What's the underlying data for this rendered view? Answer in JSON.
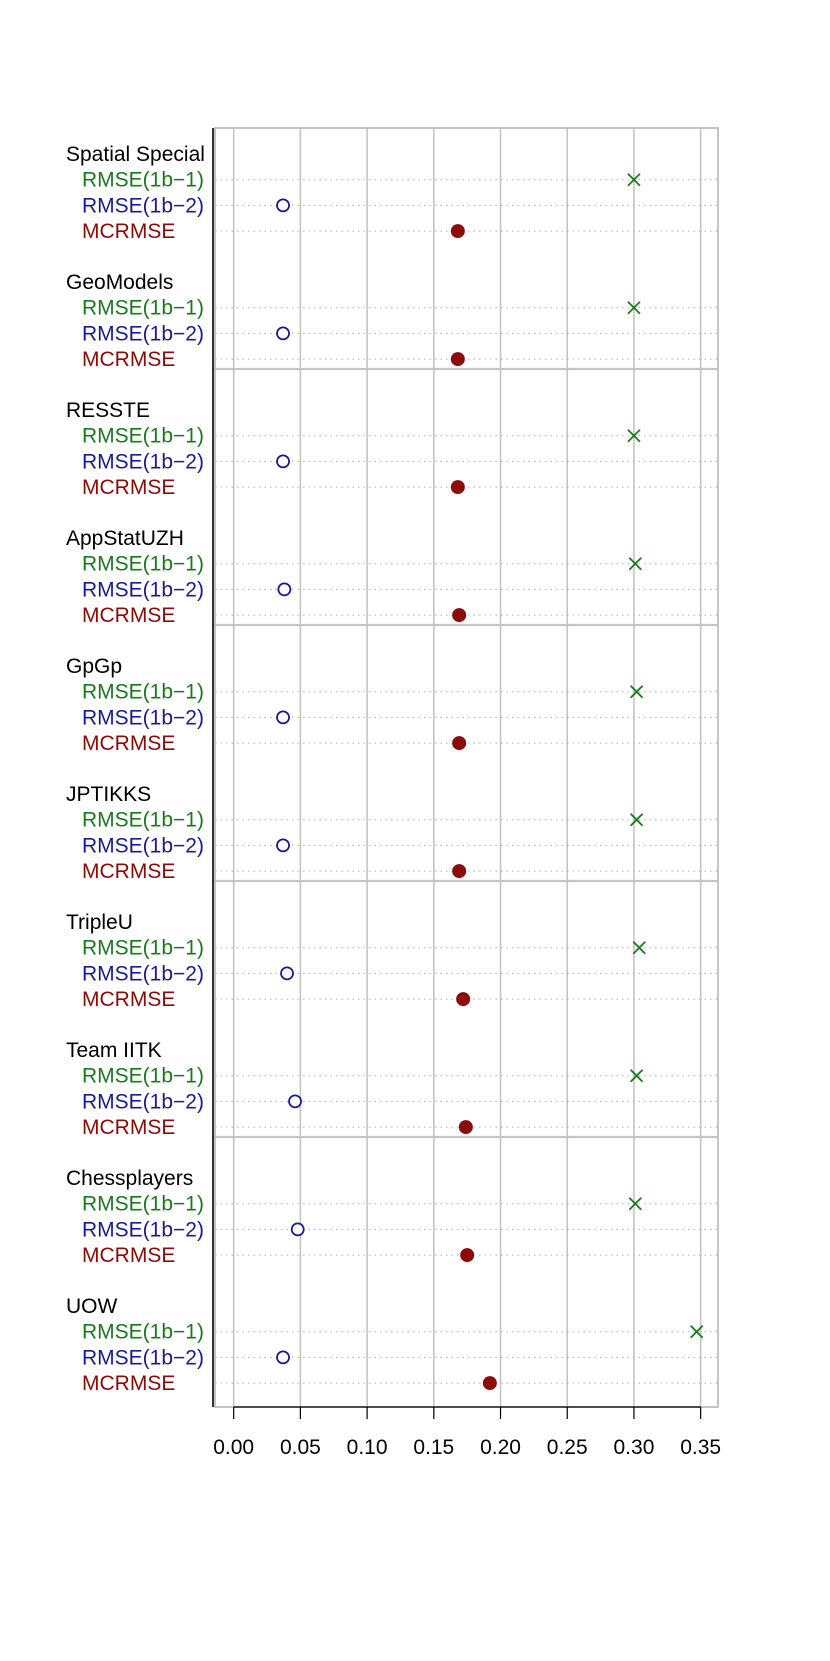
{
  "chart_data": {
    "type": "scatter",
    "orientation": "horizontal dot plot",
    "xlim": [
      -0.014,
      0.363
    ],
    "x_ticks": [
      "0.00",
      "0.05",
      "0.10",
      "0.15",
      "0.20",
      "0.25",
      "0.30",
      "0.35"
    ],
    "x_tick_values": [
      0,
      0.05,
      0.1,
      0.15,
      0.2,
      0.25,
      0.3,
      0.35
    ],
    "grid": true,
    "metric_labels": [
      "RMSE(1b−1)",
      "RMSE(1b−2)",
      "MCRMSE"
    ],
    "series_style": [
      {
        "metric": "RMSE(1b−1)",
        "marker": "x",
        "color": "#1a7a1a"
      },
      {
        "metric": "RMSE(1b−2)",
        "marker": "open-circle",
        "color": "#1a1a99"
      },
      {
        "metric": "MCRMSE",
        "marker": "filled-circle",
        "color": "#8b0a0a"
      }
    ],
    "teams": [
      {
        "name": "Spatial Special",
        "values": [
          0.3,
          0.037,
          0.168
        ]
      },
      {
        "name": "GeoModels",
        "values": [
          0.3,
          0.037,
          0.168
        ]
      },
      {
        "name": "RESSTE",
        "values": [
          0.3,
          0.037,
          0.168
        ]
      },
      {
        "name": "AppStatUZH",
        "values": [
          0.301,
          0.038,
          0.169
        ]
      },
      {
        "name": "GpGp",
        "values": [
          0.302,
          0.037,
          0.169
        ]
      },
      {
        "name": "JPTIKKS",
        "values": [
          0.302,
          0.037,
          0.169
        ]
      },
      {
        "name": "TripleU",
        "values": [
          0.304,
          0.04,
          0.172
        ]
      },
      {
        "name": "Team IITK",
        "values": [
          0.302,
          0.046,
          0.174
        ]
      },
      {
        "name": "Chessplayers",
        "values": [
          0.301,
          0.048,
          0.175
        ]
      },
      {
        "name": "UOW",
        "values": [
          0.347,
          0.037,
          0.192
        ]
      }
    ]
  }
}
